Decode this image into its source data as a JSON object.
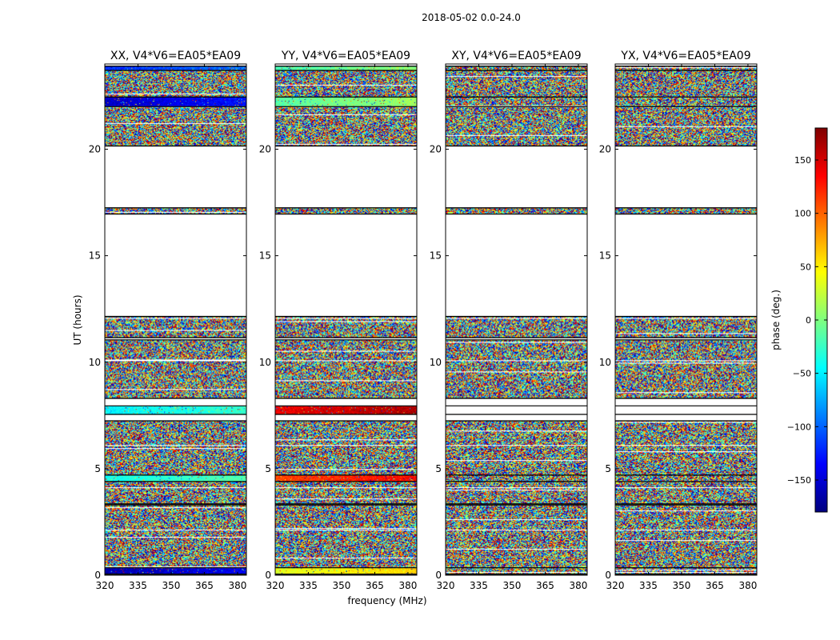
{
  "figure_title": "2018-05-02 0.0-24.0",
  "colors": {
    "jet": [
      "#00007f",
      "#0000ff",
      "#007fff",
      "#00ffff",
      "#7fff7f",
      "#ffff00",
      "#ff7f00",
      "#ff0000",
      "#7f0000"
    ],
    "background": "#ffffff",
    "axis": "#000000"
  },
  "chart_data": {
    "type": "heatmap",
    "xlabel": "frequency (MHz)",
    "ylabel": "UT (hours)",
    "xlim": [
      320,
      384
    ],
    "ylim": [
      0,
      24
    ],
    "x_ticks": [
      320,
      335,
      350,
      365,
      380
    ],
    "y_ticks": [
      0,
      5,
      10,
      15,
      20
    ],
    "colorbar": {
      "label": "phase (deg.)",
      "range": [
        -180,
        180
      ],
      "ticks": [
        150,
        100,
        50,
        0,
        -50,
        -100,
        -150
      ],
      "tick_labels": [
        "150",
        "100",
        "50",
        "0",
        "−50",
        "−100",
        "−150"
      ],
      "colormap": "jet"
    },
    "panels": [
      {
        "title": "XX, V4*V6=EA05*EA09",
        "correlation": "XX"
      },
      {
        "title": "YY, V4*V6=EA05*EA09",
        "correlation": "YY"
      },
      {
        "title": "XY, V4*V6=EA05*EA09",
        "correlation": "XY"
      },
      {
        "title": "YX, V4*V6=EA05*EA09",
        "correlation": "YX"
      }
    ],
    "data_time_ranges_hours": [
      [
        0.05,
        3.3
      ],
      [
        3.35,
        7.25
      ],
      [
        8.3,
        11.05
      ],
      [
        11.15,
        12.15
      ],
      [
        16.95,
        17.25
      ],
      [
        20.15,
        23.9
      ]
    ],
    "flagged_time_ranges_hours": [
      [
        12.15,
        16.95
      ],
      [
        17.25,
        20.15
      ]
    ],
    "calibrator_scans_hours": [
      {
        "range": [
          0.05,
          0.35
        ],
        "phase_deg": {
          "XX": -165,
          "YY": 35
        }
      },
      {
        "range": [
          4.4,
          4.7
        ],
        "phase_deg": {
          "XX": -40,
          "YY": 110
        }
      },
      {
        "range": [
          7.55,
          7.95
        ],
        "phase_deg": {
          "XX": -50,
          "YY": 140
        }
      },
      {
        "range": [
          22.0,
          22.45
        ],
        "phase_deg": {
          "XX": -155,
          "YY": -15
        }
      },
      {
        "range": [
          23.7,
          23.9
        ],
        "phase_deg": {
          "XX": -120,
          "YY": -20
        }
      }
    ]
  }
}
